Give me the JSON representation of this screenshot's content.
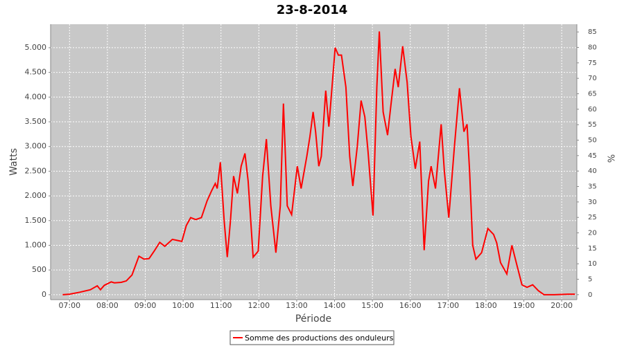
{
  "chart_data": {
    "type": "line",
    "title": "23-8-2014",
    "x_label": "Période",
    "y_label": "Watts",
    "y2_label": "%",
    "xlim": [
      "06:30",
      "20:24"
    ],
    "xticks": [
      "07:00",
      "08:00",
      "09:00",
      "10:00",
      "11:00",
      "12:00",
      "13:00",
      "14:00",
      "15:00",
      "16:00",
      "17:00",
      "18:00",
      "19:00",
      "20:00"
    ],
    "ylim": [
      -100,
      5475
    ],
    "yticks": [
      0,
      500,
      {
        "value": 1000,
        "label": "1.000"
      },
      {
        "value": 1500,
        "label": "1.500"
      },
      {
        "value": 2000,
        "label": "2.000"
      },
      {
        "value": 2500,
        "label": "2.500"
      },
      {
        "value": 3000,
        "label": "3.000"
      },
      {
        "value": 3500,
        "label": "3.500"
      },
      {
        "value": 4000,
        "label": "4.000"
      },
      {
        "value": 4500,
        "label": "4.500"
      },
      {
        "value": 5000,
        "label": "5.000"
      }
    ],
    "y2lim": [
      -1.6,
      87.5
    ],
    "y2ticks": [
      0,
      5,
      10,
      15,
      20,
      25,
      30,
      35,
      40,
      45,
      50,
      55,
      60,
      65,
      70,
      75,
      80,
      85
    ],
    "grid": true,
    "legend": "bottom",
    "x": [
      "06:49",
      "07:00",
      "07:16",
      "07:33",
      "07:44",
      "07:49",
      "07:55",
      "08:06",
      "08:11",
      "08:22",
      "08:30",
      "08:39",
      "08:50",
      "08:58",
      "09:06",
      "09:14",
      "09:23",
      "09:31",
      "09:43",
      "09:58",
      "10:05",
      "10:12",
      "10:20",
      "10:29",
      "10:38",
      "10:45",
      "10:51",
      "10:54",
      "10:59",
      "11:05",
      "11:10",
      "11:15",
      "11:20",
      "11:26",
      "11:32",
      "11:38",
      "11:43",
      "11:51",
      "11:59",
      "12:06",
      "12:12",
      "12:19",
      "12:27",
      "12:34",
      "12:39",
      "12:45",
      "12:52",
      "13:01",
      "13:07",
      "13:16",
      "13:21",
      "13:26",
      "13:30",
      "13:35",
      "13:39",
      "13:46",
      "13:51",
      "14:01",
      "14:06",
      "14:11",
      "14:18",
      "14:24",
      "14:29",
      "14:36",
      "14:42",
      "14:48",
      "14:53",
      "15:01",
      "15:07",
      "15:11",
      "15:17",
      "15:24",
      "15:29",
      "15:36",
      "15:41",
      "15:48",
      "15:55",
      "16:01",
      "16:08",
      "16:15",
      "16:22",
      "16:29",
      "16:33",
      "16:40",
      "16:49",
      "16:54",
      "17:01",
      "17:10",
      "17:18",
      "17:25",
      "17:30",
      "17:34",
      "17:39",
      "17:44",
      "17:53",
      "18:03",
      "18:12",
      "18:17",
      "18:23",
      "18:33",
      "18:41",
      "18:49",
      "18:57",
      "19:05",
      "19:14",
      "19:23",
      "19:32",
      "19:48",
      "20:10",
      "20:21"
    ],
    "series": [
      {
        "name": "Somme des productions des onduleurs",
        "color": "#ff0000",
        "values": [
          0,
          10,
          50,
          100,
          180,
          100,
          190,
          260,
          240,
          250,
          280,
          400,
          780,
          720,
          730,
          880,
          1060,
          980,
          1120,
          1080,
          1400,
          1560,
          1520,
          1560,
          1900,
          2100,
          2250,
          2150,
          2680,
          1500,
          760,
          1500,
          2400,
          2050,
          2600,
          2860,
          2300,
          760,
          880,
          2400,
          3150,
          1800,
          850,
          1800,
          3870,
          1800,
          1620,
          2600,
          2150,
          2800,
          3200,
          3700,
          3300,
          2600,
          2800,
          4130,
          3400,
          5000,
          4850,
          4850,
          4200,
          2800,
          2200,
          3000,
          3930,
          3600,
          2900,
          1600,
          4200,
          5330,
          3700,
          3230,
          3800,
          4570,
          4200,
          5030,
          4300,
          3200,
          2550,
          3100,
          900,
          2300,
          2600,
          2150,
          3450,
          2500,
          1560,
          3000,
          4180,
          3300,
          3450,
          2500,
          1000,
          720,
          850,
          1340,
          1220,
          1050,
          650,
          420,
          1000,
          600,
          200,
          150,
          200,
          80,
          0,
          0,
          10,
          10
        ]
      }
    ]
  }
}
